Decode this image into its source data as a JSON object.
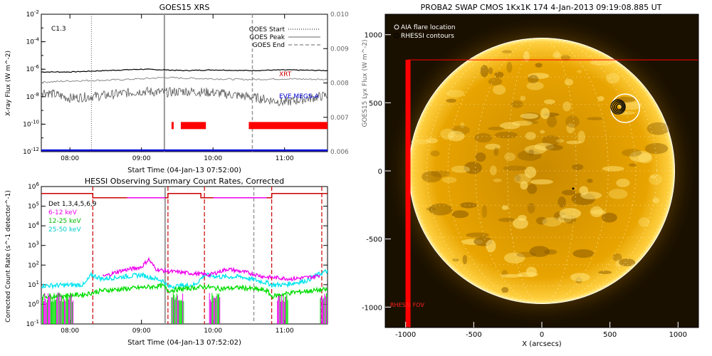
{
  "colors": {
    "goes_long": "#000000",
    "goes_short": "#888888",
    "lyx": "#555555",
    "eve": "#0000dd",
    "rhessi_obs": "#ff0000",
    "hessi_det": "#cc0000",
    "hessi_6_12": "#ee00ee",
    "hessi_12_25": "#00dd00",
    "hessi_25_50": "#00e5ee",
    "sun_disk": "#e0a000",
    "sun_bg": "#1a1000",
    "fov": "#ff0000"
  },
  "chart_data": [
    {
      "type": "line",
      "title": "GOES15 XRS",
      "xlabel": "Start Time (04-Jan-13 07:52:00)",
      "ylabel": "X-ray Flux (W m^-2)",
      "ylabel_right": "GOES15 Lyx Flux (W m^-2)",
      "x_ticks": [
        "08:00",
        "09:00",
        "10:00",
        "11:00"
      ],
      "x_range_hours": [
        7.6,
        11.6
      ],
      "y_log_range": [
        -12,
        -2
      ],
      "y_ticks": [
        "10^-2",
        "10^-4",
        "10^-6",
        "10^-8",
        "10^-10",
        "10^-12"
      ],
      "y_right_range": [
        0.006,
        0.01
      ],
      "y_right_ticks": [
        "0.010",
        "0.009",
        "0.008",
        "0.007",
        "0.006"
      ],
      "class_label": "C1.3",
      "legend": [
        "GOES Start",
        "GOES Peak",
        "GOES End"
      ],
      "series_labels": {
        "xrt": "XRT",
        "eve": "EVE MEGS-A"
      },
      "goes_start_hour": 8.3,
      "goes_peak_hour": 9.32,
      "goes_end_hour": 10.55,
      "series": [
        {
          "name": "GOES long",
          "x": [
            7.6,
            8.0,
            8.5,
            9.0,
            9.32,
            9.6,
            10.0,
            10.5,
            11.0,
            11.6
          ],
          "log_y": [
            -6.2,
            -6.2,
            -6.1,
            -6.0,
            -6.05,
            -6.1,
            -6.05,
            -6.1,
            -6.05,
            -6.1
          ]
        },
        {
          "name": "GOES short",
          "x": [
            7.6,
            8.0,
            8.5,
            9.0,
            9.32,
            9.6,
            10.0,
            10.5,
            11.0,
            11.6
          ],
          "log_y": [
            -6.95,
            -6.85,
            -6.8,
            -6.7,
            -6.6,
            -6.65,
            -6.7,
            -6.75,
            -6.7,
            -6.75
          ]
        },
        {
          "name": "Lyx",
          "x": [
            7.6,
            8.0,
            8.5,
            9.0,
            9.32,
            9.6,
            10.0,
            10.5,
            11.0,
            11.6
          ],
          "log_y": [
            -7.6,
            -8.1,
            -7.9,
            -7.6,
            -7.7,
            -7.6,
            -7.7,
            -8.0,
            -8.4,
            -7.9
          ]
        },
        {
          "name": "EVE MEGS-A",
          "x": [
            7.6,
            11.6
          ],
          "log_y": [
            -11.9,
            -11.9
          ]
        }
      ],
      "rhessi_obs_bars": [
        [
          9.42,
          9.45
        ],
        [
          9.55,
          9.9
        ],
        [
          10.5,
          11.6
        ]
      ]
    },
    {
      "type": "line",
      "title": "HESSI Observing Summary Count Rates, Corrected",
      "xlabel": "Start Time (04-Jan-13 07:52:02)",
      "ylabel": "Corrected Count Rate (s^-1 detector^-1)",
      "x_ticks": [
        "08:00",
        "09:00",
        "10:00",
        "11:00"
      ],
      "x_range_hours": [
        7.6,
        11.6
      ],
      "y_log_range": [
        -1,
        6
      ],
      "y_ticks": [
        "10^6",
        "10^5",
        "10^4",
        "10^3",
        "10^2",
        "10^1",
        "10^0",
        "10^-1"
      ],
      "legend": [
        "Det 1,3,4,5,6,9",
        "6-12 keV",
        "12-25 keV",
        "25-50 keV"
      ],
      "night_start_hours": [
        8.32,
        9.37,
        9.88,
        10.82,
        11.52
      ],
      "gray_lines_hours": [
        9.33,
        10.57
      ],
      "series": [
        {
          "name": "25-50 keV",
          "x": [
            7.6,
            8.2,
            8.3,
            8.45,
            9.0,
            9.3,
            9.37,
            9.75,
            9.88,
            10.1,
            10.4,
            10.75,
            10.82,
            11.0,
            11.3,
            11.52,
            11.6
          ],
          "log_y": [
            0.95,
            1.0,
            1.5,
            1.3,
            1.5,
            1.2,
            0.9,
            1.0,
            1.5,
            1.4,
            1.4,
            1.1,
            1.0,
            1.0,
            1.2,
            1.6,
            1.7
          ]
        },
        {
          "name": "6-12 keV",
          "x": [
            8.45,
            8.7,
            9.0,
            9.1,
            9.2,
            9.33,
            9.95,
            10.2,
            10.5,
            10.72,
            11.1,
            11.4,
            11.5
          ],
          "log_y": [
            1.4,
            1.7,
            1.9,
            2.3,
            1.8,
            1.7,
            1.5,
            1.8,
            1.6,
            1.4,
            1.3,
            1.4,
            1.5
          ]
        },
        {
          "name": "12-25 keV",
          "x": [
            7.6,
            8.2,
            8.45,
            9.0,
            9.3,
            9.37,
            9.88,
            10.1,
            10.4,
            10.75,
            10.82,
            11.1,
            11.4,
            11.6
          ],
          "log_y": [
            0.4,
            0.5,
            0.7,
            0.85,
            0.95,
            0.7,
            0.9,
            0.8,
            0.85,
            0.7,
            0.4,
            0.6,
            0.7,
            0.75
          ]
        }
      ],
      "attenuator_level_log": 5.5
    },
    {
      "type": "heatmap",
      "title": "PROBA2 SWAP CMOS 1Kx1K 174  4-Jan-2013 09:19:08.885 UT",
      "xlabel": "X (arcsecs)",
      "ylabel": "",
      "x_range": [
        -1150,
        1150
      ],
      "y_range": [
        -1150,
        1150
      ],
      "x_ticks": [
        "-1000",
        "-500",
        "0",
        "500",
        "1000"
      ],
      "y_ticks": [
        "1000",
        "500",
        "0",
        "-500",
        "-1000"
      ],
      "legend": [
        "AIA flare location",
        "RHESSI contours"
      ],
      "sun_radius_arcsec": 975,
      "flare_center_arcsec": [
        560,
        470
      ],
      "fov_label": "RHESSI FOV"
    }
  ]
}
